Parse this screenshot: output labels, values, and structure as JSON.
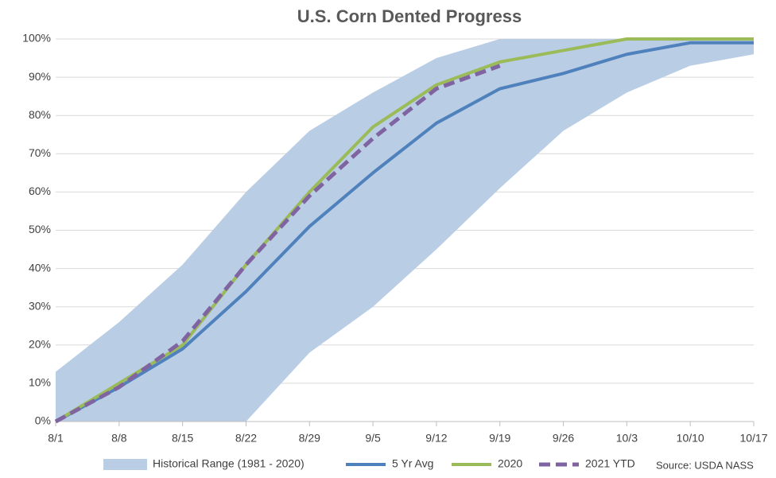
{
  "chart_data": {
    "type": "line",
    "title": "U.S. Corn Dented Progress",
    "categories": [
      "8/1",
      "8/8",
      "8/15",
      "8/22",
      "8/29",
      "9/5",
      "9/12",
      "9/19",
      "9/26",
      "10/3",
      "10/10",
      "10/17"
    ],
    "range": {
      "name": "Historical Range (1981 - 2020)",
      "color": "#b9cde5",
      "upper": [
        13,
        26,
        41,
        60,
        76,
        86,
        95,
        100,
        100,
        100,
        100,
        100
      ],
      "lower": [
        0,
        0,
        0,
        0,
        18,
        30,
        45,
        61,
        76,
        86,
        93,
        96
      ]
    },
    "series": [
      {
        "name": "5 Yr Avg",
        "color": "#4f81bd",
        "values": [
          0,
          9,
          19,
          34,
          51,
          65,
          78,
          87,
          91,
          96,
          99,
          99
        ]
      },
      {
        "name": "2020",
        "color": "#9bbb59",
        "values": [
          0,
          10,
          20,
          41,
          60,
          77,
          88,
          94,
          97,
          100,
          100,
          100
        ]
      },
      {
        "name": "2021 YTD",
        "color": "#8064a2",
        "dashed": true,
        "values": [
          0,
          9,
          21,
          41,
          59,
          74,
          87,
          93,
          null,
          null,
          null,
          null
        ]
      }
    ],
    "ylim": [
      0,
      100
    ],
    "yticks": [
      {
        "value": 0,
        "label": "0%"
      },
      {
        "value": 10,
        "label": "10%"
      },
      {
        "value": 20,
        "label": "20%"
      },
      {
        "value": 30,
        "label": "30%"
      },
      {
        "value": 40,
        "label": "40%"
      },
      {
        "value": 50,
        "label": "50%"
      },
      {
        "value": 60,
        "label": "60%"
      },
      {
        "value": 70,
        "label": "70%"
      },
      {
        "value": 80,
        "label": "80%"
      },
      {
        "value": 90,
        "label": "90%"
      },
      {
        "value": 100,
        "label": "100%"
      }
    ],
    "grid": true,
    "legend": "bottom",
    "annotation": "Source: USDA NASS"
  }
}
